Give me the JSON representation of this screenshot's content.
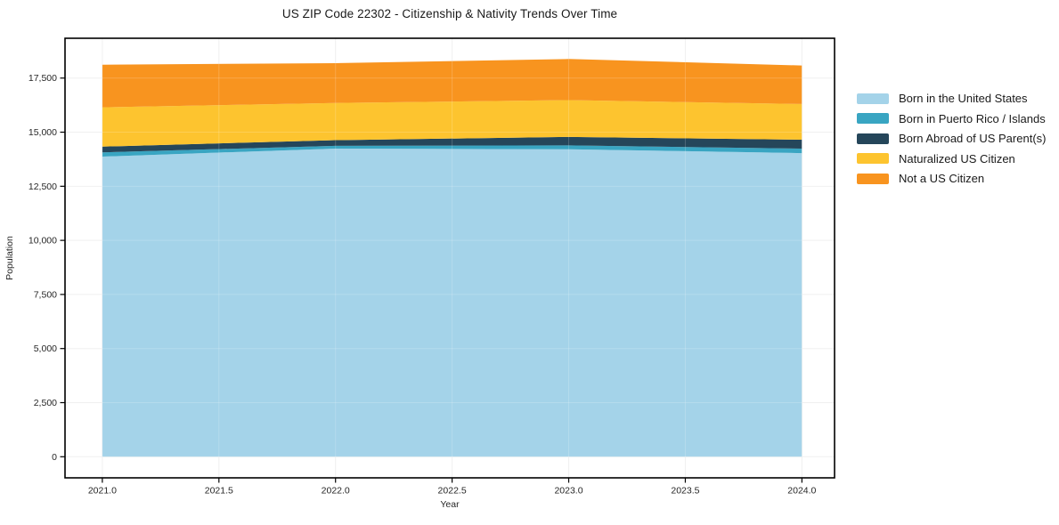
{
  "chart_data": {
    "type": "area",
    "stacked": true,
    "title": "US ZIP Code 22302 - Citizenship & Nativity Trends Over Time",
    "xlabel": "Year",
    "ylabel": "Population",
    "x": [
      2021,
      2022,
      2023,
      2024
    ],
    "series": [
      {
        "name": "Born in the United States",
        "color": "#a4d3e9",
        "values": [
          13870,
          14240,
          14210,
          14030
        ]
      },
      {
        "name": "Born in Puerto Rico / Islands",
        "color": "#39a5c2",
        "values": [
          200,
          130,
          180,
          210
        ]
      },
      {
        "name": "Born Abroad of US Parent(s)",
        "color": "#25465a",
        "values": [
          260,
          260,
          390,
          410
        ]
      },
      {
        "name": "Naturalized US Citizen",
        "color": "#fdc42f",
        "values": [
          1820,
          1720,
          1700,
          1650
        ]
      },
      {
        "name": "Not a US Citizen",
        "color": "#f8941f",
        "values": [
          1970,
          1840,
          1900,
          1780
        ]
      }
    ],
    "x_ticks": [
      {
        "value": 2021.0,
        "label": "2021.0"
      },
      {
        "value": 2021.5,
        "label": "2021.5"
      },
      {
        "value": 2022.0,
        "label": "2022.0"
      },
      {
        "value": 2022.5,
        "label": "2022.5"
      },
      {
        "value": 2023.0,
        "label": "2023.0"
      },
      {
        "value": 2023.5,
        "label": "2023.5"
      },
      {
        "value": 2024.0,
        "label": "2024.0"
      }
    ],
    "y_ticks": [
      {
        "value": 0,
        "label": "0"
      },
      {
        "value": 2500,
        "label": "2,500"
      },
      {
        "value": 5000,
        "label": "5,000"
      },
      {
        "value": 7500,
        "label": "7,500"
      },
      {
        "value": 10000,
        "label": "10,000"
      },
      {
        "value": 12500,
        "label": "12,500"
      },
      {
        "value": 15000,
        "label": "15,000"
      },
      {
        "value": 17500,
        "label": "17,500"
      }
    ],
    "xlim": [
      2020.84,
      2024.14
    ],
    "ylim": [
      -975,
      19340
    ],
    "grid": true,
    "grid_color": "#ededed",
    "spine_color": "#000000",
    "legend_position": "right"
  }
}
